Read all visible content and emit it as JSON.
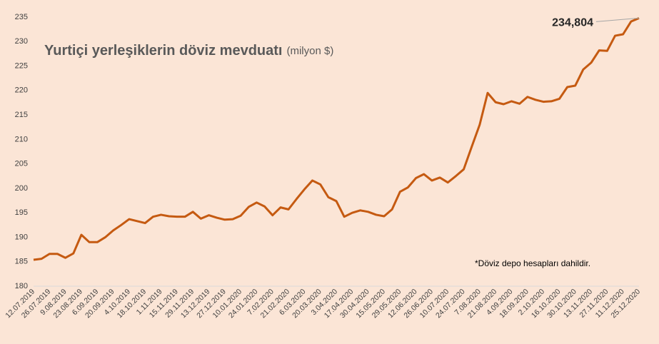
{
  "chart_data": {
    "type": "line",
    "title": "Yurtiçi yerleşiklerin döviz mevduatı",
    "subtitle": "(milyon $)",
    "note": "*Döviz depo hesapları dahildir.",
    "categories": [
      "12.07.2019",
      null,
      "26.07.2019",
      null,
      "9.08.2019",
      null,
      "23.08.2019",
      null,
      "6.09.2019",
      null,
      "20.09.2019",
      null,
      "4.10.2019",
      null,
      "18.10.2019",
      null,
      "1.11.2019",
      null,
      "15.11.2019",
      null,
      "29.11.2019",
      null,
      "13.12.2019",
      null,
      "27.12.2019",
      null,
      "10.01.2020",
      null,
      "24.01.2020",
      null,
      "7.02.2020",
      null,
      "21.02.2020",
      null,
      "6.03.2020",
      null,
      "20.03.2020",
      null,
      "3.04.2020",
      null,
      "17.04.2020",
      null,
      "30.04.2020",
      null,
      "15.05.2020",
      null,
      "29.05.2020",
      null,
      "12.06.2020",
      null,
      "26.06.2020",
      null,
      "10.07.2020",
      null,
      "24.07.2020",
      null,
      "7.08.2020",
      null,
      "21.08.2020",
      null,
      "4.09.2020",
      null,
      "18.09.2020",
      null,
      "2.10.2020",
      null,
      "16.10.2020",
      null,
      "30.10.2020",
      null,
      "13.11.2020",
      null,
      "27.11.2020",
      null,
      "11.12.2020",
      null,
      "25.12.2020"
    ],
    "series": [
      {
        "name": "Yurtiçi yerleşiklerin döviz mevduatı",
        "color": "#c55a11",
        "values": [
          185.4,
          185.6,
          186.6,
          186.6,
          185.8,
          186.7,
          190.5,
          189.0,
          189.0,
          190.0,
          191.4,
          192.5,
          193.7,
          193.3,
          192.9,
          194.2,
          194.6,
          194.3,
          194.2,
          194.2,
          195.2,
          193.8,
          194.5,
          194.0,
          193.6,
          193.7,
          194.4,
          196.2,
          197.1,
          196.3,
          194.5,
          196.1,
          195.7,
          197.8,
          199.8,
          201.6,
          200.8,
          198.2,
          197.4,
          194.2,
          195.0,
          195.5,
          195.2,
          194.6,
          194.3,
          195.7,
          199.3,
          200.2,
          202.1,
          202.9,
          201.6,
          202.2,
          201.2,
          202.5,
          203.9,
          208.5,
          213.0,
          219.5,
          217.6,
          217.2,
          217.8,
          217.3,
          218.7,
          218.1,
          217.7,
          217.8,
          218.3,
          220.7,
          221.0,
          224.3,
          225.7,
          228.2,
          228.1,
          231.2,
          231.5,
          234.1,
          234.804
        ],
        "value_labels": [
          null,
          null,
          null,
          null,
          null,
          null,
          null,
          null,
          null,
          null,
          null,
          null,
          null,
          null,
          null,
          null,
          null,
          null,
          null,
          null,
          null,
          null,
          null,
          null,
          null,
          null,
          null,
          null,
          null,
          null,
          null,
          null,
          null,
          null,
          null,
          null,
          null,
          null,
          null,
          null,
          null,
          null,
          null,
          null,
          null,
          null,
          null,
          null,
          null,
          null,
          null,
          null,
          null,
          null,
          null,
          null,
          null,
          null,
          null,
          null,
          null,
          null,
          null,
          null,
          null,
          null,
          null,
          null,
          null,
          null,
          null,
          null,
          null,
          null,
          null,
          null,
          "234,804"
        ]
      }
    ],
    "ylim": [
      180,
      235
    ],
    "yticks": [
      180,
      185,
      190,
      195,
      200,
      205,
      210,
      215,
      220,
      225,
      230,
      235
    ],
    "grid": false
  }
}
